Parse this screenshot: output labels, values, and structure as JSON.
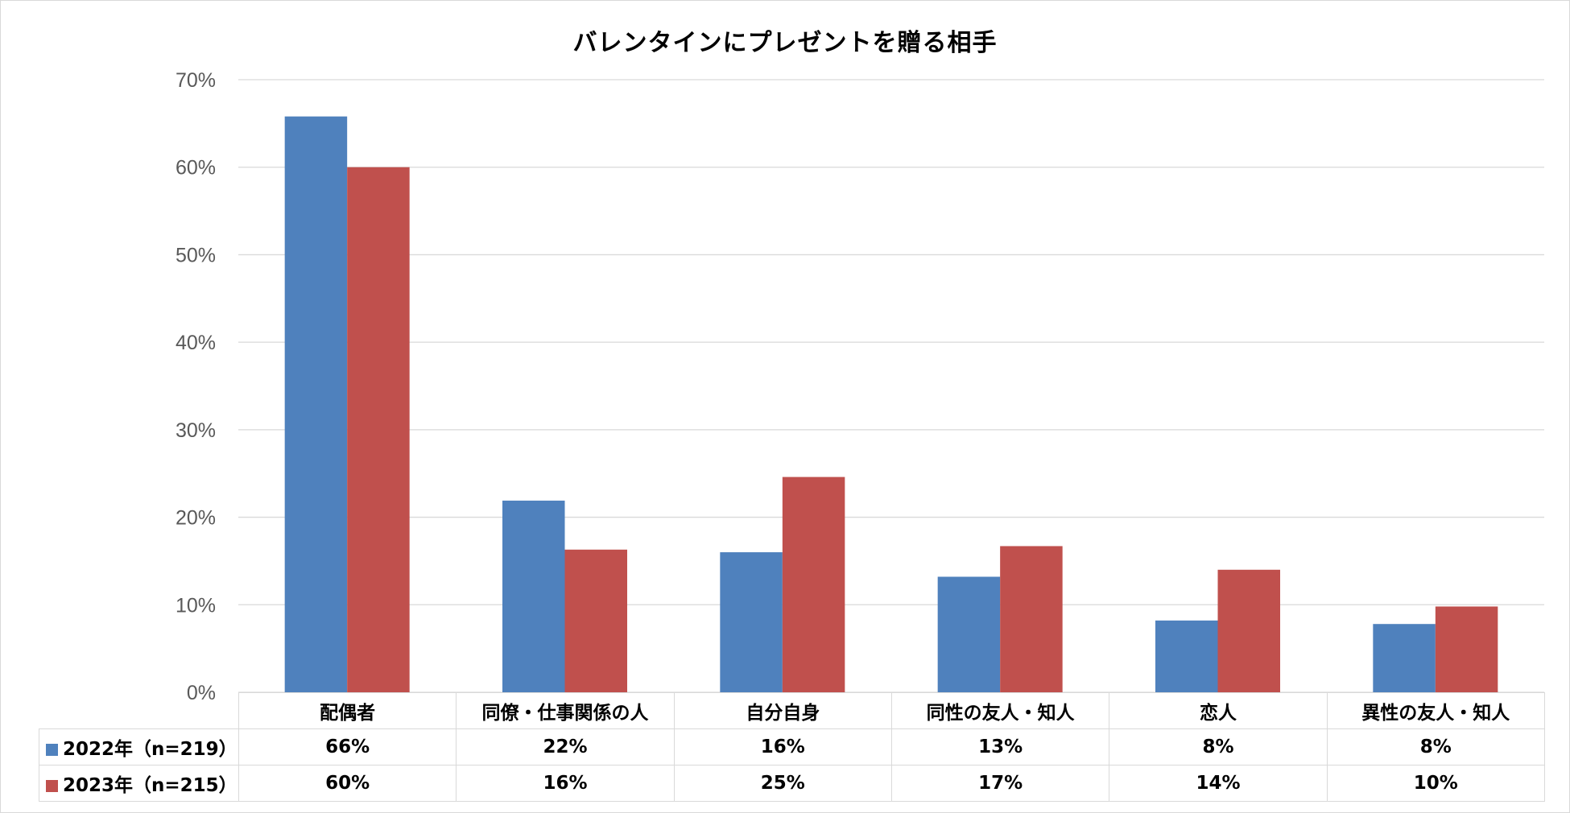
{
  "chart_data": {
    "type": "bar",
    "title": "バレンタインにプレゼントを贈る相手",
    "xlabel": "",
    "ylabel": "",
    "ylim": [
      0,
      0.7
    ],
    "ytick_labels": [
      "0%",
      "10%",
      "20%",
      "30%",
      "40%",
      "50%",
      "60%",
      "70%"
    ],
    "grid": true,
    "legend": "bottom data table",
    "categories": [
      "配偶者",
      "同僚・仕事関係の人",
      "自分自身",
      "同性の友人・知人",
      "恋人",
      "異性の友人・知人"
    ],
    "series": [
      {
        "name": "2022年（n=219）",
        "color": "#4f81bd",
        "values": [
          0.658,
          0.219,
          0.16,
          0.132,
          0.082,
          0.078
        ],
        "labels": [
          "66%",
          "22%",
          "16%",
          "13%",
          "8%",
          "8%"
        ]
      },
      {
        "name": "2023年（n=215）",
        "color": "#c0504d",
        "values": [
          0.6,
          0.163,
          0.246,
          0.167,
          0.14,
          0.098
        ],
        "labels": [
          "60%",
          "16%",
          "25%",
          "17%",
          "14%",
          "10%"
        ]
      }
    ]
  }
}
